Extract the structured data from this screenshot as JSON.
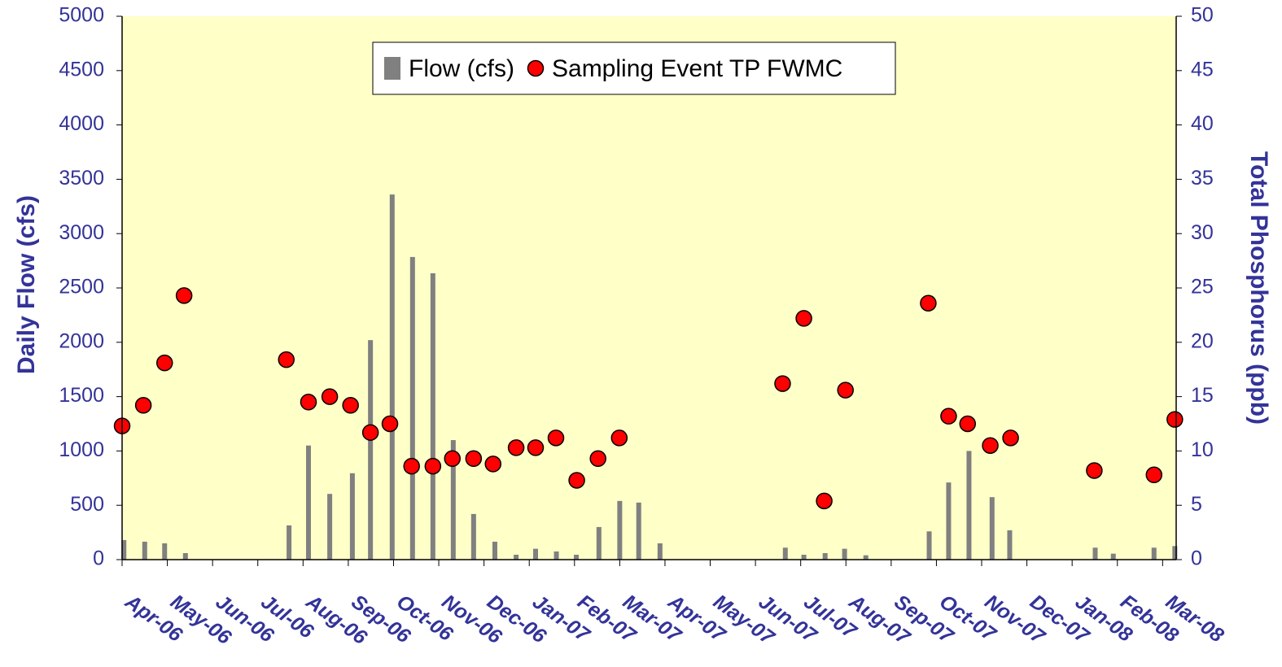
{
  "chart_data": {
    "type": "bar-scatter",
    "y_label": "Daily Flow (cfs)",
    "y2_label": "Total Phosphorus (ppb)",
    "xlim": [
      0,
      23.3
    ],
    "xticks": [
      {
        "value": 0,
        "label": "Apr-06"
      },
      {
        "value": 1,
        "label": "May-06"
      },
      {
        "value": 2,
        "label": "Jun-06"
      },
      {
        "value": 3,
        "label": "Jul-06"
      },
      {
        "value": 4,
        "label": "Aug-06"
      },
      {
        "value": 5,
        "label": "Sep-06"
      },
      {
        "value": 6,
        "label": "Oct-06"
      },
      {
        "value": 7,
        "label": "Nov-06"
      },
      {
        "value": 8,
        "label": "Dec-06"
      },
      {
        "value": 9,
        "label": "Jan-07"
      },
      {
        "value": 10,
        "label": "Feb-07"
      },
      {
        "value": 11,
        "label": "Mar-07"
      },
      {
        "value": 12,
        "label": "Apr-07"
      },
      {
        "value": 13,
        "label": "May-07"
      },
      {
        "value": 14,
        "label": "Jun-07"
      },
      {
        "value": 15,
        "label": "Jul-07"
      },
      {
        "value": 16,
        "label": "Aug-07"
      },
      {
        "value": 17,
        "label": "Sep-07"
      },
      {
        "value": 18,
        "label": "Oct-07"
      },
      {
        "value": 19,
        "label": "Nov-07"
      },
      {
        "value": 20,
        "label": "Dec-07"
      },
      {
        "value": 21,
        "label": "Jan-08"
      },
      {
        "value": 22,
        "label": "Feb-08"
      },
      {
        "value": 23,
        "label": "Mar-08"
      }
    ],
    "ylim": [
      0,
      5000
    ],
    "yticks": [
      0,
      500,
      1000,
      1500,
      2000,
      2500,
      3000,
      3500,
      4000,
      4500,
      5000
    ],
    "y2lim": [
      0,
      50
    ],
    "y2ticks": [
      0,
      5,
      10,
      15,
      20,
      25,
      30,
      35,
      40,
      45,
      50
    ],
    "legend": "top",
    "series": [
      {
        "name": "Flow (cfs)",
        "type": "bar",
        "color": "#808080",
        "x": [
          0.04,
          0.5,
          0.94,
          1.4,
          3.69,
          4.12,
          4.59,
          5.09,
          5.49,
          5.97,
          6.42,
          6.87,
          7.32,
          7.77,
          8.24,
          8.71,
          9.14,
          9.6,
          10.04,
          10.54,
          11.0,
          11.42,
          11.89,
          14.66,
          15.07,
          15.54,
          15.97,
          16.44,
          17.84,
          18.27,
          18.72,
          19.23,
          19.62,
          21.51,
          21.91,
          22.81,
          23.27
        ],
        "values": [
          180,
          165,
          150,
          60,
          315,
          1050,
          605,
          795,
          2020,
          3360,
          2785,
          2635,
          1100,
          420,
          165,
          45,
          100,
          75,
          45,
          300,
          540,
          525,
          150,
          110,
          45,
          60,
          100,
          40,
          260,
          710,
          1000,
          575,
          270,
          110,
          55,
          110,
          125
        ]
      },
      {
        "name": "Sampling Event TP FWMC",
        "type": "scatter",
        "axis": "y2",
        "color": "#ff0000",
        "x": [
          0,
          0.47,
          0.94,
          1.37,
          3.63,
          4.12,
          4.59,
          5.05,
          5.49,
          5.92,
          6.4,
          6.87,
          7.3,
          7.77,
          8.2,
          8.71,
          9.14,
          9.59,
          10.05,
          10.52,
          10.99,
          14.6,
          15.07,
          15.52,
          15.99,
          17.82,
          18.27,
          18.69,
          19.19,
          19.64,
          21.49,
          22.81,
          23.27
        ],
        "values": [
          12.3,
          14.2,
          18.1,
          24.3,
          18.4,
          14.5,
          15.0,
          14.2,
          11.7,
          12.5,
          8.6,
          8.6,
          9.3,
          9.3,
          8.8,
          10.3,
          10.3,
          11.2,
          7.3,
          9.3,
          11.2,
          16.2,
          22.2,
          5.4,
          15.6,
          23.6,
          13.2,
          12.5,
          10.5,
          11.2,
          8.2,
          7.8,
          12.9
        ]
      }
    ]
  }
}
